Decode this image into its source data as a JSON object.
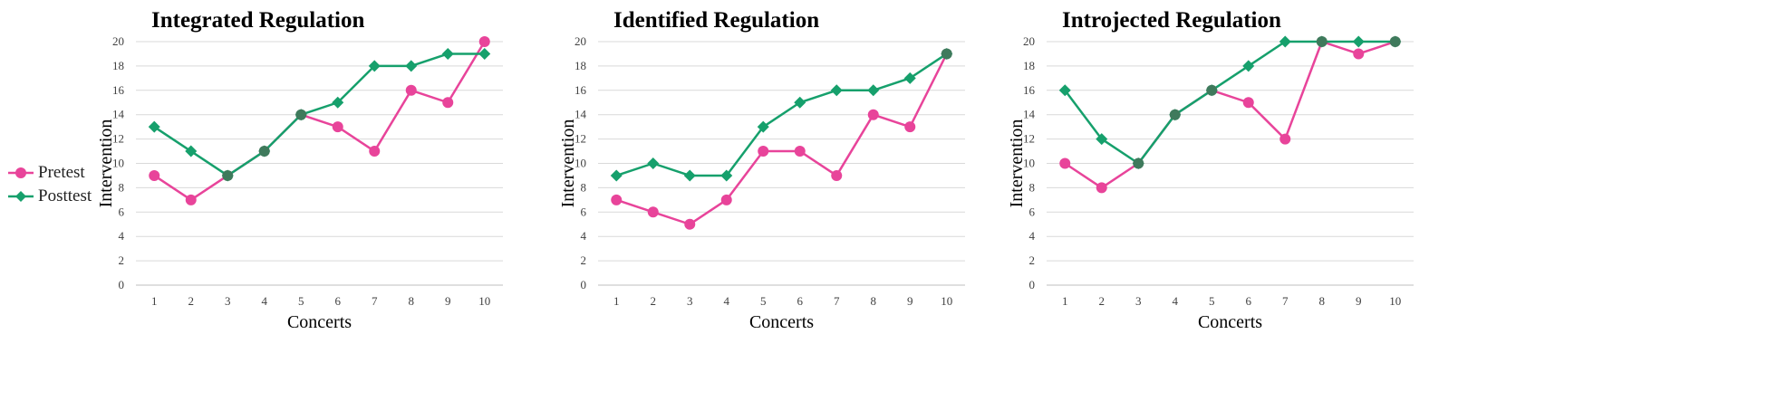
{
  "legend": [
    {
      "label": "Pretest",
      "color": "#e8449a",
      "marker": "circle"
    },
    {
      "label": "Posttest",
      "color": "#16a06c",
      "marker": "diamond"
    }
  ],
  "chart_data": [
    {
      "type": "line",
      "title": "Integrated Regulation",
      "xlabel": "Concerts",
      "ylabel": "Intervention",
      "categories": [
        "1",
        "2",
        "3",
        "4",
        "5",
        "6",
        "7",
        "8",
        "9",
        "10"
      ],
      "ylim": [
        0,
        20
      ],
      "yticks": [
        0,
        2,
        4,
        6,
        8,
        10,
        12,
        14,
        16,
        18,
        20
      ],
      "grid": true,
      "series": [
        {
          "name": "Pretest",
          "color": "#e8449a",
          "marker": "circle",
          "values": [
            9,
            7,
            9,
            11,
            14,
            13,
            11,
            16,
            15,
            20
          ]
        },
        {
          "name": "Posttest",
          "color": "#16a06c",
          "marker": "diamond",
          "values": [
            13,
            11,
            9,
            11,
            14,
            15,
            18,
            18,
            19,
            19
          ]
        }
      ]
    },
    {
      "type": "line",
      "title": "Identified Regulation",
      "xlabel": "Concerts",
      "ylabel": "Intervention",
      "categories": [
        "1",
        "2",
        "3",
        "4",
        "5",
        "6",
        "7",
        "8",
        "9",
        "10"
      ],
      "ylim": [
        0,
        20
      ],
      "yticks": [
        0,
        2,
        4,
        6,
        8,
        10,
        12,
        14,
        16,
        18,
        20
      ],
      "grid": true,
      "series": [
        {
          "name": "Pretest",
          "color": "#e8449a",
          "marker": "circle",
          "values": [
            7,
            6,
            5,
            7,
            11,
            11,
            9,
            14,
            13,
            19
          ]
        },
        {
          "name": "Posttest",
          "color": "#16a06c",
          "marker": "diamond",
          "values": [
            9,
            10,
            9,
            9,
            13,
            15,
            16,
            16,
            17,
            19
          ]
        }
      ]
    },
    {
      "type": "line",
      "title": "Introjected Regulation",
      "xlabel": "Concerts",
      "ylabel": "Intervention",
      "categories": [
        "1",
        "2",
        "3",
        "4",
        "5",
        "6",
        "7",
        "8",
        "9",
        "10"
      ],
      "ylim": [
        0,
        20
      ],
      "yticks": [
        0,
        2,
        4,
        6,
        8,
        10,
        12,
        14,
        16,
        18,
        20
      ],
      "grid": true,
      "series": [
        {
          "name": "Pretest",
          "color": "#e8449a",
          "marker": "circle",
          "values": [
            10,
            8,
            10,
            14,
            16,
            15,
            12,
            20,
            19,
            20
          ]
        },
        {
          "name": "Posttest",
          "color": "#16a06c",
          "marker": "diamond",
          "values": [
            16,
            12,
            10,
            14,
            16,
            18,
            20,
            20,
            20,
            20
          ]
        }
      ]
    }
  ]
}
